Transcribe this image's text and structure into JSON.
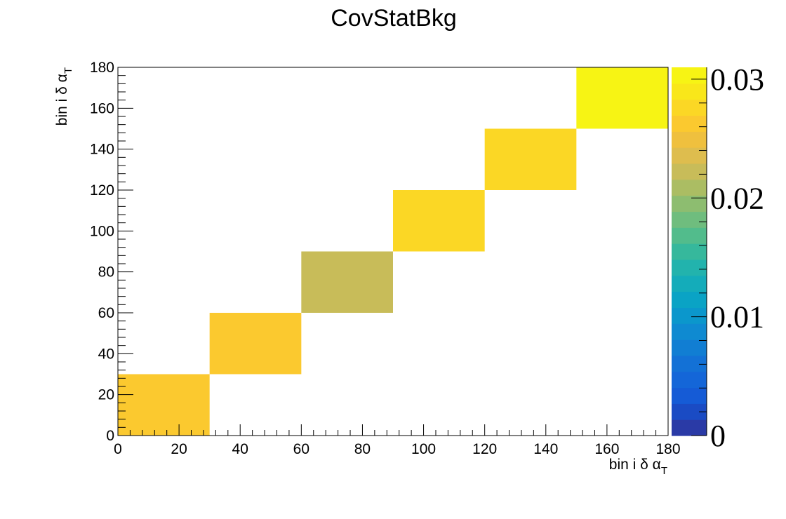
{
  "chart_data": {
    "type": "heatmap",
    "title": "CovStatBkg",
    "xlabel": {
      "text": "bin i δ α",
      "subscript": "T"
    },
    "ylabel": {
      "text": "bin i δ α",
      "subscript": "T"
    },
    "xlim": [
      0,
      180
    ],
    "ylim": [
      0,
      180
    ],
    "zlim": [
      0,
      0.031
    ],
    "x_ticks": [
      "0",
      "20",
      "40",
      "60",
      "80",
      "100",
      "120",
      "140",
      "160",
      "180"
    ],
    "y_ticks": [
      "0",
      "20",
      "40",
      "60",
      "80",
      "100",
      "120",
      "140",
      "160",
      "180"
    ],
    "z_ticks": [
      {
        "label": "0",
        "value": 0
      },
      {
        "label": "0.01",
        "value": 0.01
      },
      {
        "label": "0.02",
        "value": 0.02
      },
      {
        "label": "0.03",
        "value": 0.03
      }
    ],
    "cells": [
      {
        "x0": 0,
        "x1": 30,
        "y0": 0,
        "y1": 30,
        "value": 0.0265
      },
      {
        "x0": 30,
        "x1": 60,
        "y0": 30,
        "y1": 60,
        "value": 0.0265
      },
      {
        "x0": 60,
        "x1": 90,
        "y0": 60,
        "y1": 90,
        "value": 0.0228
      },
      {
        "x0": 90,
        "x1": 120,
        "y0": 90,
        "y1": 120,
        "value": 0.0278
      },
      {
        "x0": 120,
        "x1": 150,
        "y0": 120,
        "y1": 150,
        "value": 0.0278
      },
      {
        "x0": 150,
        "x1": 180,
        "y0": 150,
        "y1": 180,
        "value": 0.0305
      }
    ],
    "palette": [
      "#2a3aa6",
      "#1a4bc4",
      "#155bd6",
      "#1466d8",
      "#1371d6",
      "#117ed3",
      "#0f8ad1",
      "#0b97cc",
      "#0aa3c5",
      "#14acba",
      "#22b3ad",
      "#36b89c",
      "#52bc8c",
      "#6fbd7e",
      "#8dbd70",
      "#abbd63",
      "#c8bc59",
      "#debd4e",
      "#efc03e",
      "#fbc92f",
      "#fbd725",
      "#f9e71a",
      "#f7f414"
    ]
  }
}
